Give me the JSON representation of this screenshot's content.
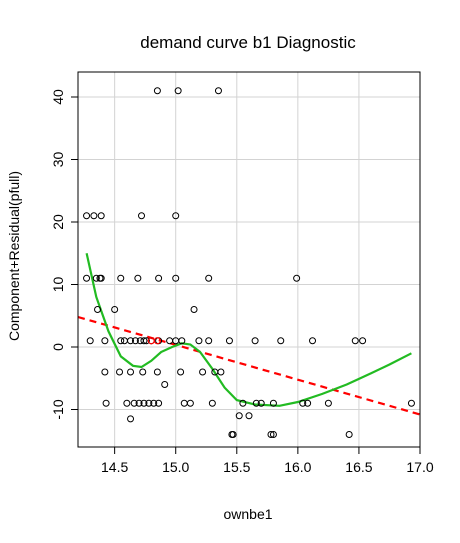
{
  "chart_data": {
    "type": "scatter",
    "title": "demand curve b1 Diagnostic",
    "xlabel": "ownbe1",
    "ylabel": "Component+Residual(pfull)",
    "xlim": [
      14.2,
      17.0
    ],
    "ylim": [
      -16,
      44
    ],
    "xticks": [
      14.5,
      15.0,
      15.5,
      16.0,
      16.5,
      17.0
    ],
    "xtick_labels": [
      "14.5",
      "15.0",
      "15.5",
      "16.0",
      "16.5",
      "17.0"
    ],
    "yticks": [
      -10,
      0,
      10,
      20,
      30,
      40
    ],
    "ytick_labels": [
      "-10",
      "0",
      "10",
      "20",
      "30",
      "40"
    ],
    "grid": true,
    "colors": {
      "points": "#000000",
      "fit": "#ff0000",
      "smooth": "#22bb22",
      "grid": "#d3d3d3",
      "highlight": "#ff0000"
    },
    "points": [
      {
        "x": 14.85,
        "y": 41
      },
      {
        "x": 15.02,
        "y": 41
      },
      {
        "x": 15.35,
        "y": 41
      },
      {
        "x": 14.27,
        "y": 21
      },
      {
        "x": 14.33,
        "y": 21
      },
      {
        "x": 14.39,
        "y": 21
      },
      {
        "x": 14.72,
        "y": 21
      },
      {
        "x": 15.0,
        "y": 21
      },
      {
        "x": 14.27,
        "y": 11
      },
      {
        "x": 14.35,
        "y": 11
      },
      {
        "x": 14.38,
        "y": 11
      },
      {
        "x": 14.39,
        "y": 11
      },
      {
        "x": 14.55,
        "y": 11
      },
      {
        "x": 14.69,
        "y": 11
      },
      {
        "x": 14.86,
        "y": 11
      },
      {
        "x": 15.0,
        "y": 11
      },
      {
        "x": 15.27,
        "y": 11
      },
      {
        "x": 15.99,
        "y": 11
      },
      {
        "x": 14.36,
        "y": 6
      },
      {
        "x": 14.5,
        "y": 6
      },
      {
        "x": 15.15,
        "y": 6
      },
      {
        "x": 14.3,
        "y": 1
      },
      {
        "x": 14.42,
        "y": 1
      },
      {
        "x": 14.55,
        "y": 1
      },
      {
        "x": 14.58,
        "y": 1
      },
      {
        "x": 14.63,
        "y": 1
      },
      {
        "x": 14.67,
        "y": 1
      },
      {
        "x": 14.71,
        "y": 1
      },
      {
        "x": 14.74,
        "y": 1
      },
      {
        "x": 14.76,
        "y": 1
      },
      {
        "x": 14.8,
        "y": 1
      },
      {
        "x": 14.86,
        "y": 1
      },
      {
        "x": 14.95,
        "y": 1
      },
      {
        "x": 15.0,
        "y": 1
      },
      {
        "x": 15.05,
        "y": 1
      },
      {
        "x": 15.19,
        "y": 1
      },
      {
        "x": 15.27,
        "y": 1
      },
      {
        "x": 15.44,
        "y": 1
      },
      {
        "x": 15.65,
        "y": 1
      },
      {
        "x": 15.86,
        "y": 1
      },
      {
        "x": 16.12,
        "y": 1
      },
      {
        "x": 16.47,
        "y": 1
      },
      {
        "x": 16.53,
        "y": 1
      },
      {
        "x": 14.42,
        "y": -4
      },
      {
        "x": 14.54,
        "y": -4
      },
      {
        "x": 14.63,
        "y": -4
      },
      {
        "x": 14.73,
        "y": -4
      },
      {
        "x": 14.85,
        "y": -4
      },
      {
        "x": 15.04,
        "y": -4
      },
      {
        "x": 15.22,
        "y": -4
      },
      {
        "x": 15.32,
        "y": -4
      },
      {
        "x": 15.37,
        "y": -4
      },
      {
        "x": 14.91,
        "y": -6
      },
      {
        "x": 14.43,
        "y": -9
      },
      {
        "x": 14.6,
        "y": -9
      },
      {
        "x": 14.66,
        "y": -9
      },
      {
        "x": 14.7,
        "y": -9
      },
      {
        "x": 14.74,
        "y": -9
      },
      {
        "x": 14.78,
        "y": -9
      },
      {
        "x": 14.82,
        "y": -9
      },
      {
        "x": 14.86,
        "y": -9
      },
      {
        "x": 15.07,
        "y": -9
      },
      {
        "x": 15.12,
        "y": -9
      },
      {
        "x": 15.3,
        "y": -9
      },
      {
        "x": 15.55,
        "y": -9
      },
      {
        "x": 15.66,
        "y": -9
      },
      {
        "x": 15.7,
        "y": -9
      },
      {
        "x": 15.8,
        "y": -9
      },
      {
        "x": 16.04,
        "y": -9
      },
      {
        "x": 16.08,
        "y": -9
      },
      {
        "x": 16.25,
        "y": -9
      },
      {
        "x": 16.93,
        "y": -9
      },
      {
        "x": 15.52,
        "y": -11
      },
      {
        "x": 15.6,
        "y": -11
      },
      {
        "x": 14.63,
        "y": -11.5
      },
      {
        "x": 15.46,
        "y": -14
      },
      {
        "x": 15.47,
        "y": -14
      },
      {
        "x": 15.78,
        "y": -14
      },
      {
        "x": 15.8,
        "y": -14
      },
      {
        "x": 16.42,
        "y": -14
      }
    ],
    "highlight_points": [
      {
        "x": 14.8,
        "y": 1
      },
      {
        "x": 14.85,
        "y": 1
      }
    ],
    "fit_line": {
      "x": [
        14.2,
        17.0
      ],
      "y": [
        4.8,
        -10.8
      ]
    },
    "smooth_curve": {
      "x": [
        14.27,
        14.35,
        14.45,
        14.55,
        14.65,
        14.72,
        14.8,
        14.88,
        14.97,
        15.05,
        15.12,
        15.2,
        15.3,
        15.4,
        15.5,
        15.65,
        15.85,
        16.0,
        16.2,
        16.4,
        16.6,
        16.75,
        16.93
      ],
      "y": [
        15,
        8,
        2.5,
        -1.5,
        -3,
        -3.2,
        -2.2,
        -0.8,
        0,
        0.6,
        0.4,
        -0.8,
        -3.5,
        -6.5,
        -8.5,
        -9.2,
        -9.4,
        -8.8,
        -7.5,
        -6,
        -4.2,
        -2.8,
        -1
      ]
    }
  }
}
